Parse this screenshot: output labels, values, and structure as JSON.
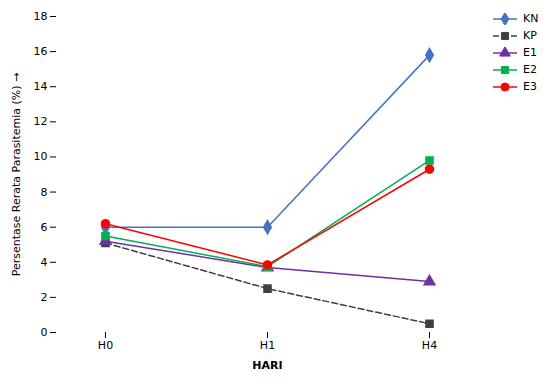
{
  "chart_data": {
    "type": "line",
    "categories": [
      "H0",
      "H1",
      "H4"
    ],
    "series": [
      {
        "name": "KN",
        "color": "#4472C4",
        "marker": "diamond",
        "line_style": "solid",
        "values": [
          6.0,
          6.0,
          15.8
        ]
      },
      {
        "name": "KP",
        "color": "#404040",
        "marker": "square",
        "line_style": "dashed",
        "values": [
          5.1,
          2.5,
          0.5
        ]
      },
      {
        "name": "E1",
        "color": "#7030A0",
        "marker": "triangle",
        "line_style": "solid",
        "values": [
          5.2,
          3.7,
          2.9
        ]
      },
      {
        "name": "E2",
        "color": "#00B050",
        "marker": "square",
        "line_style": "solid",
        "values": [
          5.5,
          3.75,
          9.8
        ]
      },
      {
        "name": "E3",
        "color": "#FF0000",
        "marker": "circle",
        "line_style": "solid",
        "values": [
          6.2,
          3.85,
          9.3
        ]
      }
    ],
    "xlabel": "HARI",
    "ylabel": "Persentase Rerata Parasitemia (%)",
    "ylim": [
      0,
      18
    ],
    "yticks": [
      0,
      2,
      4,
      6,
      8,
      10,
      12,
      14,
      16,
      18
    ],
    "grid": false,
    "legend": "upper right"
  }
}
